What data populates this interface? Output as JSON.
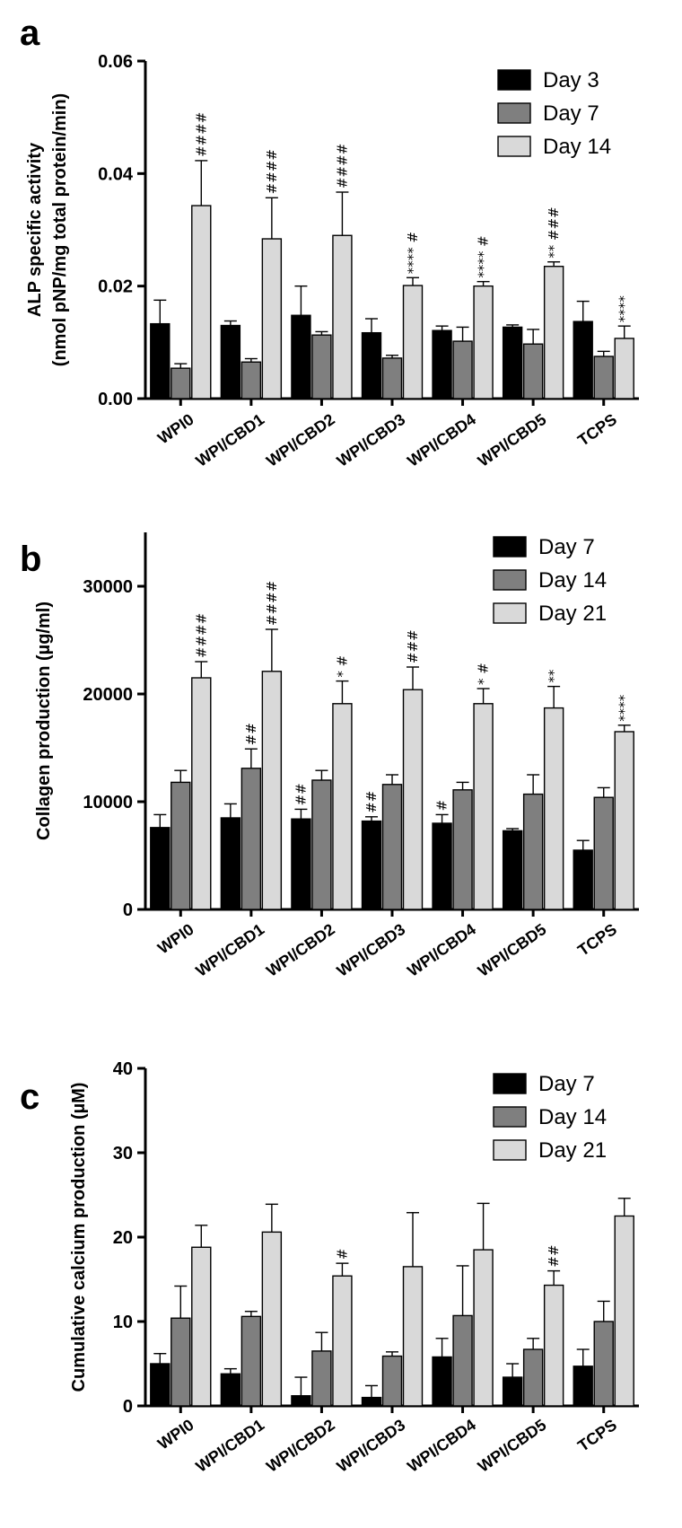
{
  "chart_data": [
    {
      "type": "bar",
      "panel_label": "a",
      "title": "",
      "xlabel": "",
      "ylabel_line1": "ALP specific activity",
      "ylabel_line2": "(nmol pNP/mg total protein/min)",
      "ylim": [
        0,
        0.06
      ],
      "yticks": [
        0,
        0.02,
        0.04,
        0.06
      ],
      "ytick_labels": [
        "0.00",
        "0.02",
        "0.04",
        "0.06"
      ],
      "categories": [
        "WPI0",
        "WPI/CBD1",
        "WPI/CBD2",
        "WPI/CBD3",
        "WPI/CBD4",
        "WPI/CBD5",
        "TCPS"
      ],
      "legend_position": "top-right",
      "series": [
        {
          "name": "Day 3",
          "color": "#000000",
          "values": [
            0.0133,
            0.013,
            0.0148,
            0.0117,
            0.0121,
            0.0127,
            0.0137
          ],
          "errors": [
            0.0042,
            0.0008,
            0.0052,
            0.0025,
            0.0008,
            0.0004,
            0.0036
          ]
        },
        {
          "name": "Day 7",
          "color": "#7f7f7f",
          "values": [
            0.0054,
            0.0065,
            0.0113,
            0.0072,
            0.0102,
            0.0097,
            0.0075
          ],
          "errors": [
            0.0008,
            0.0006,
            0.0006,
            0.0005,
            0.0025,
            0.0026,
            0.0009
          ]
        },
        {
          "name": "Day 14",
          "color": "#d9d9d9",
          "values": [
            0.0343,
            0.0284,
            0.029,
            0.0201,
            0.02,
            0.0235,
            0.0107
          ],
          "errors": [
            0.008,
            0.0073,
            0.0077,
            0.0014,
            0.0008,
            0.0008,
            0.0022
          ]
        }
      ],
      "annotations": [
        {
          "category": "WPI0",
          "series": "Day 14",
          "text": "####"
        },
        {
          "category": "WPI/CBD1",
          "series": "Day 14",
          "text": "####"
        },
        {
          "category": "WPI/CBD2",
          "series": "Day 14",
          "text": "####"
        },
        {
          "category": "WPI/CBD3",
          "series": "Day 14",
          "text": "****  #"
        },
        {
          "category": "WPI/CBD4",
          "series": "Day 14",
          "text": "****  #"
        },
        {
          "category": "WPI/CBD5",
          "series": "Day 14",
          "text": "**  ###"
        },
        {
          "category": "TCPS",
          "series": "Day 14",
          "text": "****"
        }
      ]
    },
    {
      "type": "bar",
      "panel_label": "b",
      "title": "",
      "xlabel": "",
      "ylabel_line1": "Collagen production (µg/ml)",
      "ylabel_line2": "",
      "ylim": [
        0,
        35000
      ],
      "yticks": [
        0,
        10000,
        20000,
        30000
      ],
      "ytick_labels": [
        "0",
        "10000",
        "20000",
        "30000"
      ],
      "categories": [
        "WPI0",
        "WPI/CBD1",
        "WPI/CBD2",
        "WPI/CBD3",
        "WPI/CBD4",
        "WPI/CBD5",
        "TCPS"
      ],
      "legend_position": "top-right",
      "series": [
        {
          "name": "Day 7",
          "color": "#000000",
          "values": [
            7600,
            8500,
            8400,
            8200,
            8000,
            7300,
            5500
          ],
          "errors": [
            1200,
            1300,
            900,
            400,
            800,
            200,
            900
          ]
        },
        {
          "name": "Day 14",
          "color": "#7f7f7f",
          "values": [
            11800,
            13100,
            12000,
            11600,
            11100,
            10700,
            10400
          ],
          "errors": [
            1100,
            1800,
            900,
            900,
            700,
            1800,
            900
          ]
        },
        {
          "name": "Day 21",
          "color": "#d9d9d9",
          "values": [
            21500,
            22100,
            19100,
            20400,
            19100,
            18700,
            16500
          ],
          "errors": [
            1500,
            3900,
            2100,
            2100,
            1400,
            2000,
            600
          ]
        }
      ],
      "annotations": [
        {
          "category": "WPI0",
          "series": "Day 21",
          "text": "####"
        },
        {
          "category": "WPI/CBD1",
          "series": "Day 14",
          "text": "##"
        },
        {
          "category": "WPI/CBD1",
          "series": "Day 21",
          "text": "####"
        },
        {
          "category": "WPI/CBD2",
          "series": "Day 7",
          "text": "##"
        },
        {
          "category": "WPI/CBD2",
          "series": "Day 21",
          "text": "* #"
        },
        {
          "category": "WPI/CBD3",
          "series": "Day 7",
          "text": "##"
        },
        {
          "category": "WPI/CBD3",
          "series": "Day 21",
          "text": "###"
        },
        {
          "category": "WPI/CBD4",
          "series": "Day 7",
          "text": "#"
        },
        {
          "category": "WPI/CBD4",
          "series": "Day 21",
          "text": "* #"
        },
        {
          "category": "WPI/CBD5",
          "series": "Day 21",
          "text": "**"
        },
        {
          "category": "TCPS",
          "series": "Day 21",
          "text": "****"
        }
      ]
    },
    {
      "type": "bar",
      "panel_label": "c",
      "title": "",
      "xlabel": "",
      "ylabel_line1": "Cumulative calcium production (µM)",
      "ylabel_line2": "",
      "ylim": [
        0,
        40
      ],
      "yticks": [
        0,
        10,
        20,
        30,
        40
      ],
      "ytick_labels": [
        "0",
        "10",
        "20",
        "30",
        "40"
      ],
      "categories": [
        "WPI0",
        "WPI/CBD1",
        "WPI/CBD2",
        "WPI/CBD3",
        "WPI/CBD4",
        "WPI/CBD5",
        "TCPS"
      ],
      "legend_position": "top-right",
      "series": [
        {
          "name": "Day 7",
          "color": "#000000",
          "values": [
            5.0,
            3.8,
            1.2,
            1.0,
            5.8,
            3.4,
            4.7
          ],
          "errors": [
            1.2,
            0.6,
            2.2,
            1.4,
            2.2,
            1.6,
            2.0
          ]
        },
        {
          "name": "Day 14",
          "color": "#7f7f7f",
          "values": [
            10.4,
            10.6,
            6.5,
            5.9,
            10.7,
            6.7,
            10.0
          ],
          "errors": [
            3.8,
            0.6,
            2.2,
            0.5,
            5.9,
            1.3,
            2.4
          ]
        },
        {
          "name": "Day 21",
          "color": "#d9d9d9",
          "values": [
            18.8,
            20.6,
            15.4,
            16.5,
            18.5,
            14.3,
            22.5
          ],
          "errors": [
            2.6,
            3.3,
            1.5,
            6.4,
            5.5,
            1.7,
            2.1
          ]
        }
      ],
      "annotations": [
        {
          "category": "WPI/CBD2",
          "series": "Day 21",
          "text": "#"
        },
        {
          "category": "WPI/CBD5",
          "series": "Day 21",
          "text": "##"
        }
      ]
    }
  ]
}
